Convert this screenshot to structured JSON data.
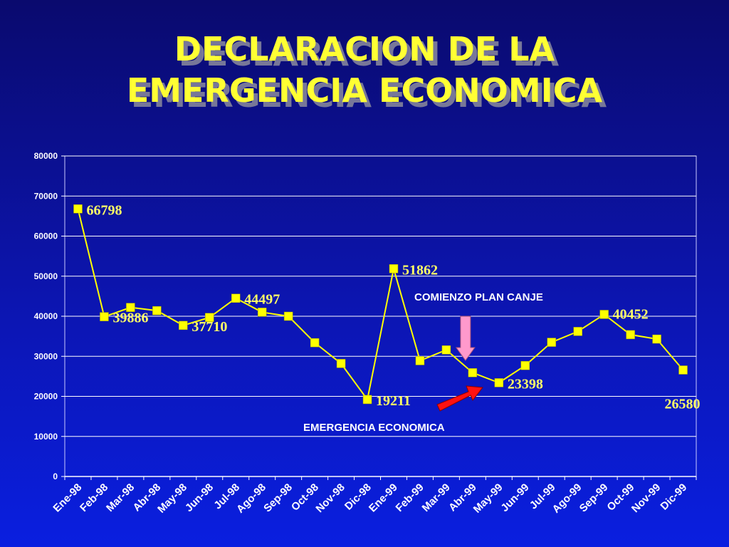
{
  "slide": {
    "title_line1": "DECLARACION DE LA",
    "title_line2": "EMERGENCIA ECONOMICA"
  },
  "chart_data": {
    "type": "line",
    "title": "DECLARACION DE LA EMERGENCIA ECONOMICA",
    "xlabel": "",
    "ylabel": "",
    "ylim": [
      0,
      80000
    ],
    "yticks": [
      0,
      10000,
      20000,
      30000,
      40000,
      50000,
      60000,
      70000,
      80000
    ],
    "grid": true,
    "categories": [
      "Ene-98",
      "Feb-98",
      "Mar-98",
      "Abr-98",
      "May-98",
      "Jun-98",
      "Jul-98",
      "Ago-98",
      "Sep-98",
      "Oct-98",
      "Nov-98",
      "Dic-98",
      "Ene-99",
      "Feb-99",
      "Mar-99",
      "Abr-99",
      "May-99",
      "Jun-99",
      "Jul-99",
      "Ago-99",
      "Sep-99",
      "Oct-99",
      "Nov-99",
      "Dic-99"
    ],
    "series": [
      {
        "values": [
          66798,
          39886,
          42200,
          41400,
          37710,
          39700,
          44497,
          41000,
          40000,
          33400,
          28200,
          19211,
          51862,
          28900,
          31600,
          25900,
          23398,
          27700,
          33500,
          36200,
          40452,
          35400,
          34300,
          26580
        ],
        "color": "#ffff00"
      }
    ],
    "data_labels": [
      {
        "index": 0,
        "text": "66798"
      },
      {
        "index": 1,
        "text": "39886"
      },
      {
        "index": 4,
        "text": "37710"
      },
      {
        "index": 6,
        "text": "44497"
      },
      {
        "index": 11,
        "text": "19211"
      },
      {
        "index": 12,
        "text": "51862"
      },
      {
        "index": 16,
        "text": "23398"
      },
      {
        "index": 20,
        "text": "40452"
      },
      {
        "index": 23,
        "text": "26580"
      }
    ],
    "annotations": [
      {
        "text": "COMIENZO PLAN CANJE",
        "index": 15,
        "arrow": "down",
        "arrow_color": "#ff99cc"
      },
      {
        "text": "EMERGENCIA ECONOMICA",
        "index": 16,
        "arrow": "up-right",
        "arrow_color": "#ff1111"
      }
    ]
  }
}
